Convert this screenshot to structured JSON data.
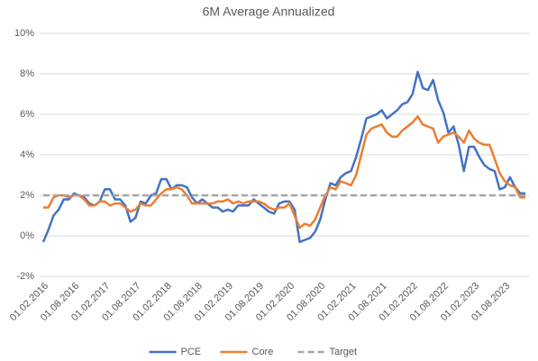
{
  "chart_data": {
    "type": "line",
    "title": "6M Average Annualized",
    "categories": [
      "01.02.2016",
      null,
      null,
      null,
      null,
      null,
      "01.08.2016",
      null,
      null,
      null,
      null,
      null,
      "01.02.2017",
      null,
      null,
      null,
      null,
      null,
      "01.08.2017",
      null,
      null,
      null,
      null,
      null,
      "01.02.2018",
      null,
      null,
      null,
      null,
      null,
      "01.08.2018",
      null,
      null,
      null,
      null,
      null,
      "01.02.2019",
      null,
      null,
      null,
      null,
      null,
      "01.08.2019",
      null,
      null,
      null,
      null,
      null,
      "01.02.2020",
      null,
      null,
      null,
      null,
      null,
      "01.08.2020",
      null,
      null,
      null,
      null,
      null,
      "01.02.2021",
      null,
      null,
      null,
      null,
      null,
      "01.08.2021",
      null,
      null,
      null,
      null,
      null,
      "01.02.2022",
      null,
      null,
      null,
      null,
      null,
      "01.08.2022",
      null,
      null,
      null,
      null,
      null,
      "01.02.2023",
      null,
      null,
      null,
      null,
      null,
      "01.08.2023",
      null,
      null,
      null,
      null
    ],
    "series": [
      {
        "name": "PCE",
        "color": "#4472c4",
        "dashed": false,
        "values": [
          -0.3,
          0.3,
          1.0,
          1.3,
          1.8,
          1.8,
          2.1,
          2.0,
          1.9,
          1.6,
          1.5,
          1.7,
          2.3,
          2.3,
          1.8,
          1.8,
          1.5,
          0.7,
          0.9,
          1.7,
          1.6,
          2.0,
          2.1,
          2.8,
          2.8,
          2.3,
          2.5,
          2.5,
          2.4,
          1.9,
          1.6,
          1.8,
          1.6,
          1.4,
          1.4,
          1.2,
          1.3,
          1.2,
          1.5,
          1.5,
          1.5,
          1.8,
          1.6,
          1.4,
          1.2,
          1.1,
          1.6,
          1.7,
          1.7,
          1.3,
          -0.3,
          -0.2,
          -0.1,
          0.2,
          0.8,
          1.8,
          2.6,
          2.5,
          2.9,
          3.1,
          3.2,
          3.9,
          4.8,
          5.8,
          5.9,
          6.0,
          6.2,
          5.8,
          6.0,
          6.2,
          6.5,
          6.6,
          7.0,
          8.1,
          7.3,
          7.2,
          7.7,
          6.7,
          6.1,
          5.1,
          5.4,
          4.5,
          3.2,
          4.4,
          4.4,
          3.9,
          3.5,
          3.3,
          3.2,
          2.3,
          2.4,
          2.9,
          2.4,
          2.1,
          2.1
        ]
      },
      {
        "name": "Core",
        "color": "#ed7d31",
        "dashed": false,
        "values": [
          1.4,
          1.4,
          1.9,
          2.0,
          2.0,
          1.9,
          2.0,
          2.0,
          1.8,
          1.5,
          1.5,
          1.7,
          1.7,
          1.5,
          1.6,
          1.6,
          1.4,
          1.2,
          1.3,
          1.6,
          1.5,
          1.5,
          1.8,
          2.1,
          2.3,
          2.3,
          2.4,
          2.3,
          2.0,
          1.6,
          1.6,
          1.6,
          1.6,
          1.6,
          1.7,
          1.7,
          1.8,
          1.6,
          1.7,
          1.6,
          1.7,
          1.7,
          1.7,
          1.6,
          1.4,
          1.3,
          1.4,
          1.4,
          1.6,
          1.0,
          0.4,
          0.6,
          0.5,
          0.8,
          1.4,
          2.0,
          2.4,
          2.3,
          2.7,
          2.6,
          2.5,
          3.0,
          4.0,
          5.0,
          5.3,
          5.4,
          5.5,
          5.1,
          4.9,
          4.9,
          5.2,
          5.4,
          5.6,
          5.9,
          5.5,
          5.4,
          5.3,
          4.6,
          4.9,
          5.0,
          5.1,
          4.9,
          4.6,
          5.2,
          4.8,
          4.6,
          4.5,
          4.5,
          3.8,
          3.1,
          2.7,
          2.5,
          2.4,
          1.9,
          1.9
        ]
      },
      {
        "name": "Target",
        "color": "#a5a5a5",
        "dashed": true,
        "values": [
          2,
          2,
          2,
          2,
          2,
          2,
          2,
          2,
          2,
          2,
          2,
          2,
          2,
          2,
          2,
          2,
          2,
          2,
          2,
          2,
          2,
          2,
          2,
          2,
          2,
          2,
          2,
          2,
          2,
          2,
          2,
          2,
          2,
          2,
          2,
          2,
          2,
          2,
          2,
          2,
          2,
          2,
          2,
          2,
          2,
          2,
          2,
          2,
          2,
          2,
          2,
          2,
          2,
          2,
          2,
          2,
          2,
          2,
          2,
          2,
          2,
          2,
          2,
          2,
          2,
          2,
          2,
          2,
          2,
          2,
          2,
          2,
          2,
          2,
          2,
          2,
          2,
          2,
          2,
          2,
          2,
          2,
          2,
          2,
          2,
          2,
          2,
          2,
          2,
          2,
          2,
          2,
          2,
          2,
          2
        ]
      }
    ],
    "ylim": [
      -2,
      10
    ],
    "yticks": [
      {
        "value": -2,
        "label": "-2%"
      },
      {
        "value": 0,
        "label": "0%"
      },
      {
        "value": 2,
        "label": "2%"
      },
      {
        "value": 4,
        "label": "4%"
      },
      {
        "value": 6,
        "label": "6%"
      },
      {
        "value": 8,
        "label": "8%"
      },
      {
        "value": 10,
        "label": "10%"
      }
    ],
    "grid": true,
    "legend": "bottom"
  }
}
